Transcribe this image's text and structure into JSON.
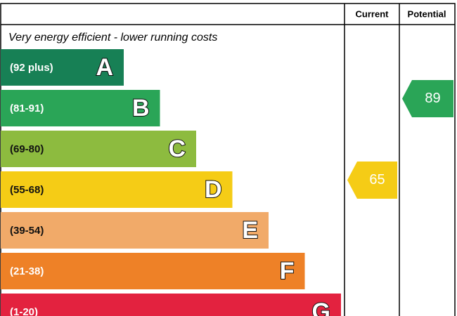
{
  "header": {
    "current": "Current",
    "potential": "Potential"
  },
  "caption": "Very energy efficient - lower running costs",
  "bands": [
    {
      "range": "(92 plus)",
      "letter": "A",
      "color": "#178055"
    },
    {
      "range": "(81-91)",
      "letter": "B",
      "color": "#2aa557"
    },
    {
      "range": "(69-80)",
      "letter": "C",
      "color": "#8dbb3f"
    },
    {
      "range": "(55-68)",
      "letter": "D",
      "color": "#f5cc16"
    },
    {
      "range": "(39-54)",
      "letter": "E",
      "color": "#f1aa69"
    },
    {
      "range": "(21-38)",
      "letter": "F",
      "color": "#ee8127"
    },
    {
      "range": "(1-20)",
      "letter": "G",
      "color": "#e3223f"
    }
  ],
  "current": {
    "value": 65
  },
  "potential": {
    "value": 89
  }
}
